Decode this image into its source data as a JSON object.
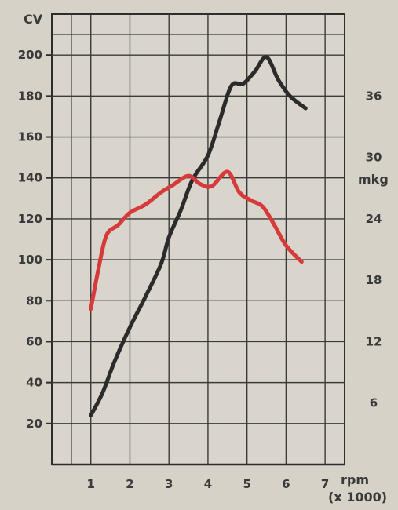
{
  "chart_data": {
    "type": "line",
    "title": "",
    "xlabel": "rpm",
    "xlabel_sub": "(x 1000)",
    "ylabel_left": "CV",
    "ylabel_right": "mkg",
    "x_ticks": [
      "1",
      "2",
      "3",
      "4",
      "5",
      "6",
      "7"
    ],
    "y_left_ticks": [
      "20",
      "40",
      "60",
      "80",
      "100",
      "120",
      "140",
      "160",
      "180",
      "200"
    ],
    "y_right_ticks": [
      "6",
      "12",
      "18",
      "24",
      "30",
      "36"
    ],
    "xlim": [
      0,
      7.5
    ],
    "ylim_left": [
      0,
      220
    ],
    "ylim_right": [
      0,
      44
    ],
    "grid": true,
    "series": [
      {
        "color": "#2b2b2b",
        "axis": "left",
        "points": [
          [
            1.0,
            24
          ],
          [
            1.3,
            35
          ],
          [
            1.6,
            50
          ],
          [
            2.0,
            67
          ],
          [
            2.4,
            82
          ],
          [
            2.8,
            98
          ],
          [
            3.0,
            111
          ],
          [
            3.3,
            124
          ],
          [
            3.6,
            139
          ],
          [
            4.0,
            151
          ],
          [
            4.3,
            168
          ],
          [
            4.6,
            185
          ],
          [
            4.9,
            186
          ],
          [
            5.2,
            192
          ],
          [
            5.5,
            199
          ],
          [
            5.8,
            188
          ],
          [
            6.1,
            180
          ],
          [
            6.5,
            174
          ]
        ]
      },
      {
        "color": "#d63a3a",
        "axis": "right",
        "points": [
          [
            1.0,
            15.2
          ],
          [
            1.2,
            19.2
          ],
          [
            1.4,
            22.4
          ],
          [
            1.7,
            23.4
          ],
          [
            2.0,
            24.6
          ],
          [
            2.4,
            25.4
          ],
          [
            2.8,
            26.6
          ],
          [
            3.1,
            27.3
          ],
          [
            3.5,
            28.2
          ],
          [
            3.8,
            27.4
          ],
          [
            4.1,
            27.2
          ],
          [
            4.5,
            28.6
          ],
          [
            4.8,
            26.6
          ],
          [
            5.1,
            25.8
          ],
          [
            5.4,
            25.2
          ],
          [
            5.7,
            23.4
          ],
          [
            6.0,
            21.4
          ],
          [
            6.4,
            19.8
          ]
        ]
      }
    ]
  }
}
